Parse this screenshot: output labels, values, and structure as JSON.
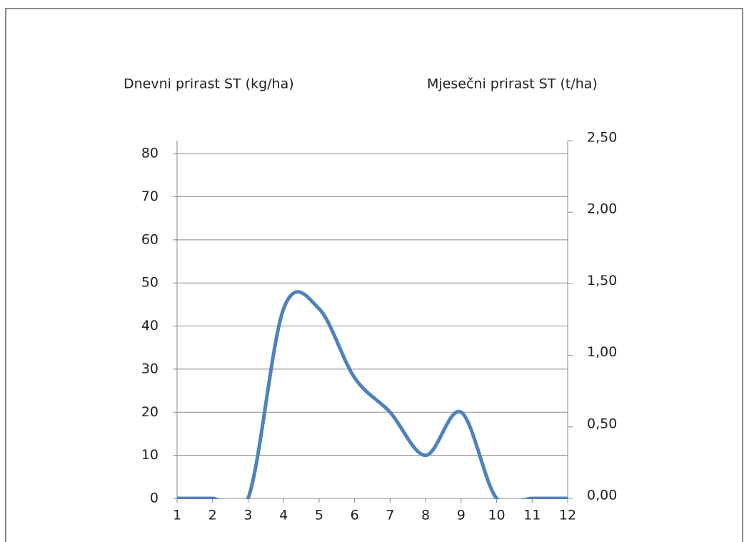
{
  "chart_data": {
    "type": "line",
    "y_label": "Dnevni prirast ST (kg/ha)",
    "y2_label": "Mjesečni prirast ST (t/ha)",
    "categories": [
      "1",
      "2",
      "3",
      "4",
      "5",
      "6",
      "7",
      "8",
      "9",
      "10",
      "11",
      "12"
    ],
    "values": [
      0,
      0,
      0,
      44,
      44,
      28,
      20,
      10,
      20,
      0,
      0,
      0
    ],
    "color": "#4f81bd",
    "smooth": true,
    "grid": true,
    "ylim": [
      0,
      83
    ],
    "yticks": [
      0,
      10,
      20,
      30,
      40,
      50,
      60,
      70,
      80
    ],
    "y2lim": [
      0,
      2.5
    ],
    "y2ticks": [
      {
        "value": 0,
        "label": "0,00"
      },
      {
        "value": 0.5,
        "label": "0,50"
      },
      {
        "value": 1,
        "label": "1,00"
      },
      {
        "value": 1.5,
        "label": "1,50"
      },
      {
        "value": 2,
        "label": "2,00"
      },
      {
        "value": 2.5,
        "label": "2,50"
      }
    ]
  }
}
